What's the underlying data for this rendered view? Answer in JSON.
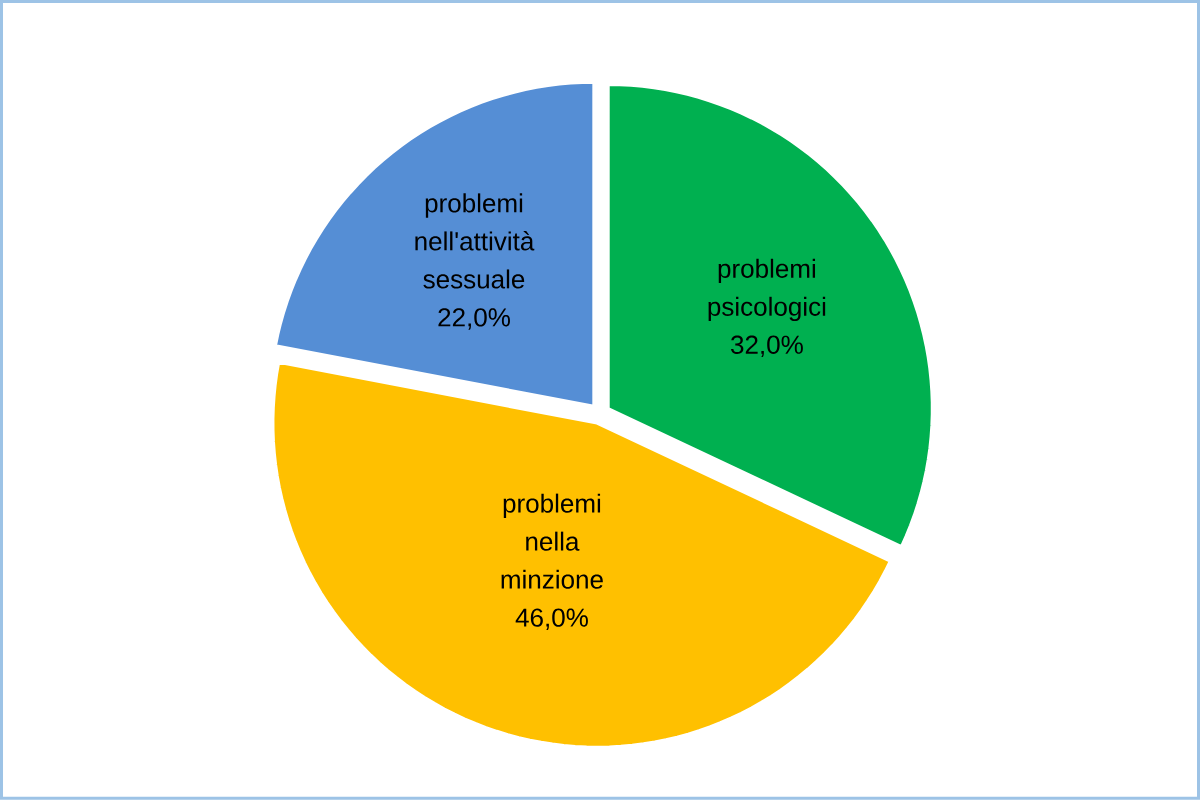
{
  "chart_data": {
    "type": "pie",
    "categories": [
      "problemi psicologici",
      "problemi nella minzione",
      "problemi nell'attività sessuale"
    ],
    "values": [
      32,
      46,
      22
    ],
    "colors": [
      "#00b050",
      "#ffc000",
      "#558ed5"
    ],
    "value_labels": [
      "32,0%",
      "46,0%",
      "22,0%"
    ]
  }
}
